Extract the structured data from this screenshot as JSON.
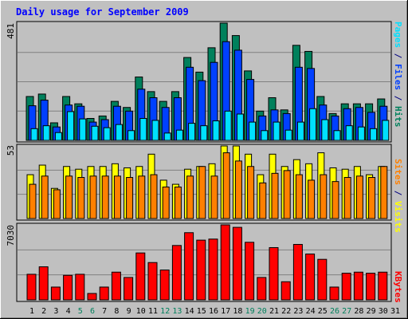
{
  "title": "Daily usage for September 2009",
  "colors": {
    "background": "#c0c0c0",
    "title": "#0000ff",
    "hits": "#00805c",
    "files": "#0040ff",
    "pages": "#00e0ff",
    "visits": "#ffff00",
    "sites": "#ff8000",
    "kbytes": "#ff0000",
    "weekend_label": "#00805c",
    "weekday_label": "#000080"
  },
  "chart_data": [
    {
      "type": "bar",
      "name": "hits-files-pages",
      "ymax_label": "481",
      "ymax": 481,
      "legend": [
        "Pages",
        "Files",
        "Hits"
      ],
      "x": [
        1,
        2,
        3,
        4,
        5,
        6,
        7,
        8,
        9,
        10,
        11,
        12,
        13,
        14,
        15,
        16,
        17,
        18,
        19,
        20,
        21,
        22,
        23,
        24,
        25,
        26,
        27,
        28,
        29,
        30,
        31
      ],
      "series": [
        {
          "name": "Hits",
          "values": [
            180,
            190,
            72,
            180,
            150,
            90,
            100,
            160,
            135,
            260,
            200,
            160,
            200,
            340,
            280,
            380,
            481,
            430,
            285,
            120,
            175,
            125,
            390,
            365,
            180,
            110,
            150,
            150,
            150,
            170,
            0
          ]
        },
        {
          "name": "Files",
          "values": [
            142,
            165,
            55,
            145,
            140,
            75,
            85,
            140,
            120,
            210,
            175,
            135,
            175,
            300,
            245,
            320,
            405,
            370,
            250,
            100,
            125,
            110,
            300,
            295,
            145,
            100,
            130,
            135,
            115,
            140,
            0
          ]
        },
        {
          "name": "Pages",
          "values": [
            48,
            60,
            32,
            118,
            88,
            58,
            52,
            65,
            40,
            90,
            82,
            30,
            42,
            70,
            60,
            80,
            120,
            108,
            75,
            40,
            75,
            42,
            75,
            130,
            85,
            40,
            60,
            55,
            48,
            82,
            0
          ]
        }
      ]
    },
    {
      "type": "bar",
      "name": "visits-sites",
      "ymax_label": "53",
      "ymax": 53,
      "legend": [
        "Sites",
        "Visits"
      ],
      "x": [
        1,
        2,
        3,
        4,
        5,
        6,
        7,
        8,
        9,
        10,
        11,
        12,
        13,
        14,
        15,
        16,
        17,
        18,
        19,
        20,
        21,
        22,
        23,
        24,
        25,
        26,
        27,
        28,
        29,
        30,
        31
      ],
      "series": [
        {
          "name": "Visits",
          "values": [
            32,
            39,
            22,
            38,
            36,
            38,
            38,
            40,
            37,
            38,
            47,
            28,
            25,
            36,
            38,
            40,
            53,
            53,
            47,
            32,
            47,
            38,
            43,
            40,
            48,
            37,
            36,
            38,
            32,
            38,
            0
          ]
        },
        {
          "name": "Sites",
          "values": [
            25,
            31,
            21,
            31,
            30,
            31,
            31,
            31,
            30,
            31,
            32,
            23,
            23,
            31,
            38,
            31,
            48,
            42,
            38,
            26,
            33,
            35,
            32,
            28,
            32,
            27,
            30,
            31,
            30,
            38,
            0
          ]
        }
      ]
    },
    {
      "type": "bar",
      "name": "kbytes",
      "ymax_label": "7030",
      "ymax": 7030,
      "legend": [
        "KBytes"
      ],
      "x": [
        1,
        2,
        3,
        4,
        5,
        6,
        7,
        8,
        9,
        10,
        11,
        12,
        13,
        14,
        15,
        16,
        17,
        18,
        19,
        20,
        21,
        22,
        23,
        24,
        25,
        26,
        27,
        28,
        29,
        30,
        31
      ],
      "series": [
        {
          "name": "KBytes",
          "values": [
            2400,
            3100,
            1200,
            2300,
            2400,
            600,
            1200,
            2600,
            2100,
            4400,
            3500,
            2800,
            5100,
            6300,
            5600,
            5700,
            7030,
            6800,
            5400,
            2100,
            4900,
            1700,
            5200,
            4300,
            3800,
            1200,
            2500,
            2600,
            2500,
            2600,
            0
          ]
        }
      ]
    }
  ],
  "days": [
    "1",
    "2",
    "3",
    "4",
    "5",
    "6",
    "7",
    "8",
    "9",
    "10",
    "11",
    "12",
    "13",
    "14",
    "15",
    "16",
    "17",
    "18",
    "19",
    "20",
    "21",
    "22",
    "23",
    "24",
    "25",
    "26",
    "27",
    "28",
    "29",
    "30",
    "31"
  ],
  "weekend_days": [
    5,
    6,
    12,
    13,
    19,
    20,
    26,
    27
  ],
  "side_legend": {
    "panel1": [
      {
        "text": "Pages",
        "color_key": "pages"
      },
      {
        "text": " / ",
        "color_key": "weekday_label"
      },
      {
        "text": "Files",
        "color_key": "files"
      },
      {
        "text": " / ",
        "color_key": "weekday_label"
      },
      {
        "text": "Hits",
        "color_key": "hits"
      }
    ],
    "panel2": [
      {
        "text": "Sites",
        "color_key": "sites"
      },
      {
        "text": " / ",
        "color_key": "weekday_label"
      },
      {
        "text": "Visits",
        "color_key": "visits"
      }
    ],
    "panel3": [
      {
        "text": "KBytes",
        "color_key": "kbytes"
      }
    ]
  }
}
